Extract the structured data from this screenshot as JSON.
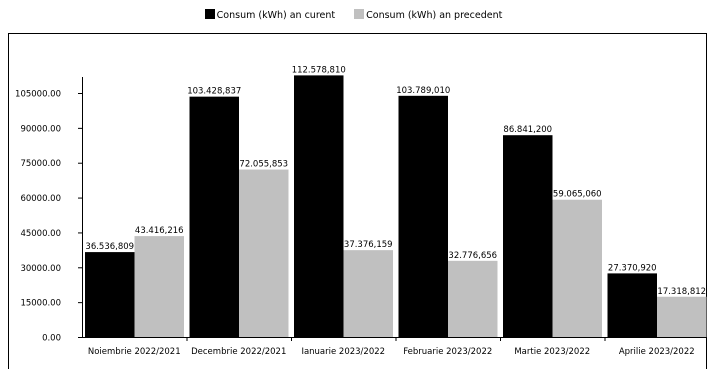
{
  "chart_data": {
    "type": "bar",
    "title": "",
    "xlabel": "",
    "ylabel": "",
    "categories": [
      "Noiembrie 2022/2021",
      "Decembrie 2022/2021",
      "Ianuarie 2023/2022",
      "Februarie 2023/2022",
      "Martie 2023/2022",
      "Aprilie 2023/2022"
    ],
    "series": [
      {
        "name": "Consum (kWh) an curent",
        "color": "#000000",
        "values": [
          36536.809,
          103428.837,
          112578.81,
          103789.01,
          86841.2,
          27370.92
        ],
        "labels": [
          "36.536,809",
          "103.428,837",
          "112.578,810",
          "103.789,010",
          "86.841,200",
          "27.370,920"
        ]
      },
      {
        "name": "Consum (kWh) an precedent",
        "color": "#c0c0c0",
        "values": [
          43416.216,
          72055.853,
          37376.159,
          32776.656,
          59065.06,
          17318.812
        ],
        "labels": [
          "43.416,216",
          "72.055,853",
          "37.376,159",
          "32.776,656",
          "59.065,060",
          "17.318,812"
        ]
      }
    ],
    "ylim": [
      0,
      120000
    ],
    "yticks": [
      "0.00",
      "15000.00",
      "30000.00",
      "45000.00",
      "60000.00",
      "75000.00",
      "90000.00",
      "105000.00"
    ],
    "ytick_values": [
      0,
      15000,
      30000,
      45000,
      60000,
      75000,
      90000,
      105000
    ],
    "grid": false,
    "legend_position": "top"
  }
}
